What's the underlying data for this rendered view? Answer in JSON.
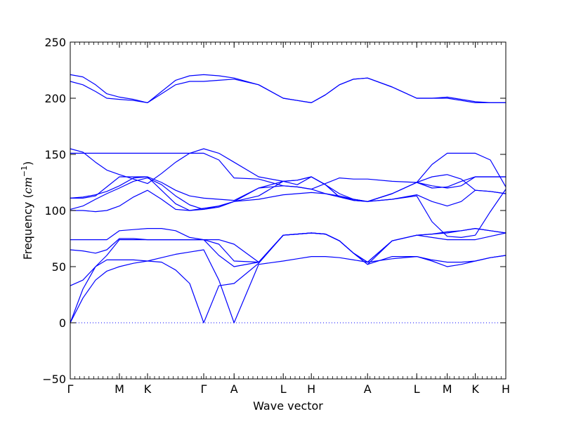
{
  "chart_data": {
    "type": "line",
    "title": "",
    "xlabel": "Wave vector",
    "ylabel": "Frequency (cm⁻¹)",
    "ylabel_prefix": "Frequency (",
    "ylabel_unit": "cm",
    "ylabel_exponent": "−1",
    "ylabel_suffix": ")",
    "ylim": [
      -50,
      250
    ],
    "yticks": [
      -50,
      0,
      50,
      100,
      150,
      200,
      250
    ],
    "ytick_labels": [
      "−50",
      "0",
      "50",
      "100",
      "150",
      "200",
      "250"
    ],
    "xlim": [
      0,
      31
    ],
    "xticks": [
      0,
      3.5,
      5.5,
      9.5,
      11.66,
      15.16,
      17.16,
      21.16,
      24.66,
      26.83,
      28.83,
      31
    ],
    "xtick_labels": [
      "Γ",
      "M",
      "K",
      "Γ",
      "A",
      "L",
      "H",
      "A",
      "L",
      "M",
      "K",
      "H"
    ],
    "grid": false,
    "zero_line": true,
    "line_color": "#0000ff",
    "series": [
      {
        "x": [
          0,
          0.9,
          1.8,
          2.6,
          3.5,
          4.5,
          5.5,
          6.5,
          7.5,
          8.5,
          9.5,
          10.58,
          11.66,
          13.41,
          15.16,
          16.16,
          17.16,
          18.16,
          19.16,
          20.16,
          21.16,
          22.91,
          24.66,
          25.75,
          26.83,
          27.83,
          28.83,
          29.9,
          31
        ],
        "y": [
          0,
          22,
          38,
          46,
          50,
          53,
          55,
          58,
          61,
          63,
          65,
          38,
          0,
          52,
          55,
          57,
          59,
          59,
          58,
          56,
          54,
          57,
          59,
          56,
          54,
          54,
          55,
          58,
          60
        ]
      },
      {
        "x": [
          0,
          0.9,
          1.8,
          2.6,
          3.5,
          4.5,
          5.5,
          6.5,
          7.5,
          8.5,
          9.5,
          10.58,
          11.66,
          13.41,
          15.16,
          16.16,
          17.16,
          18.16,
          19.16,
          20.16,
          21.16,
          22.91,
          24.66,
          25.75,
          26.83,
          27.83,
          28.83,
          29.9,
          31
        ],
        "y": [
          0,
          30,
          50,
          56,
          56,
          56,
          55,
          54,
          47,
          35,
          0,
          33,
          35,
          53,
          78,
          79,
          80,
          79,
          73,
          62,
          52,
          59,
          59,
          55,
          50,
          52,
          55,
          58,
          60
        ]
      },
      {
        "x": [
          0,
          0.9,
          1.8,
          2.6,
          3.5,
          4.5,
          5.5,
          6.5,
          7.5,
          8.5,
          9.5,
          10.58,
          11.66,
          13.41,
          15.16,
          16.16,
          17.16,
          18.16,
          19.16,
          20.16,
          21.16,
          22.91,
          24.66,
          25.75,
          26.83,
          27.83,
          28.83,
          29.9,
          31
        ],
        "y": [
          33,
          38,
          50,
          60,
          74,
          74,
          74,
          74,
          74,
          74,
          74,
          70,
          55,
          54,
          78,
          79,
          80,
          79,
          73,
          62,
          54,
          73,
          78,
          79,
          81,
          82,
          84,
          82,
          80
        ]
      },
      {
        "x": [
          0,
          0.9,
          1.8,
          2.6,
          3.5,
          4.5,
          5.5,
          6.5,
          7.5,
          8.5,
          9.5,
          10.58,
          11.66,
          13.41,
          15.16,
          16.16,
          17.16,
          18.16,
          19.16,
          20.16,
          21.16,
          22.91,
          24.66,
          25.75,
          26.83,
          27.83,
          28.83,
          29.9,
          31
        ],
        "y": [
          65,
          64,
          62,
          65,
          75,
          75,
          74,
          74,
          74,
          74,
          74,
          74,
          70,
          54,
          78,
          79,
          80,
          79,
          73,
          62,
          52,
          73,
          78,
          79,
          80,
          82,
          84,
          82,
          80
        ]
      },
      {
        "x": [
          0,
          0.9,
          1.8,
          2.6,
          3.5,
          4.5,
          5.5,
          6.5,
          7.5,
          8.5,
          9.5,
          10.58,
          11.66,
          13.41,
          15.16,
          16.16,
          17.16,
          18.16,
          19.16,
          20.16,
          21.16,
          22.91,
          24.66,
          25.75,
          26.83,
          27.83,
          28.83,
          29.9,
          31
        ],
        "y": [
          74,
          74,
          74,
          74,
          82,
          83,
          84,
          84,
          82,
          76,
          74,
          60,
          50,
          54,
          78,
          79,
          80,
          79,
          73,
          62,
          54,
          73,
          78,
          76,
          74,
          74,
          74,
          77,
          80
        ]
      },
      {
        "x": [
          0,
          0.9,
          1.8,
          2.6,
          3.5,
          4.5,
          5.5,
          6.5,
          7.5,
          8.5,
          9.5,
          10.58,
          11.66,
          13.41,
          15.16,
          16.16,
          17.16,
          18.16,
          19.16,
          20.16,
          21.16,
          22.91,
          24.66,
          25.75,
          26.83,
          27.83,
          28.83,
          29.9,
          31
        ],
        "y": [
          100,
          100,
          99,
          100,
          104,
          112,
          118,
          110,
          101,
          100,
          101,
          103,
          108,
          110,
          114,
          115,
          116,
          115,
          113,
          110,
          108,
          110,
          114,
          108,
          104,
          108,
          118,
          117,
          115
        ]
      },
      {
        "x": [
          0,
          0.9,
          1.8,
          2.6,
          3.5,
          4.5,
          5.5,
          6.5,
          7.5,
          8.5,
          9.5,
          10.58,
          11.66,
          13.41,
          15.16,
          16.16,
          17.16,
          18.16,
          19.16,
          20.16,
          21.16,
          22.91,
          24.66,
          25.75,
          26.83,
          27.83,
          28.83,
          29.9,
          31
        ],
        "y": [
          101,
          104,
          110,
          115,
          120,
          126,
          129,
          123,
          113,
          105,
          101,
          104,
          108,
          113,
          126,
          123,
          130,
          123,
          115,
          110,
          108,
          115,
          125,
          120,
          121,
          126,
          130,
          130,
          130
        ]
      },
      {
        "x": [
          0,
          0.9,
          1.8,
          2.6,
          3.5,
          4.5,
          5.5,
          6.5,
          7.5,
          8.5,
          9.5,
          10.58,
          11.66,
          13.41,
          15.16,
          16.16,
          17.16,
          18.16,
          19.16,
          20.16,
          21.16,
          22.91,
          24.66,
          25.75,
          26.83,
          27.83,
          28.83,
          29.9,
          31
        ],
        "y": [
          111,
          112,
          114,
          117,
          122,
          129,
          130,
          125,
          118,
          113,
          111,
          110,
          109,
          120,
          122,
          121,
          119,
          124,
          129,
          128,
          128,
          126,
          125,
          130,
          132,
          128,
          118,
          117,
          115
        ]
      },
      {
        "x": [
          0,
          0.9,
          1.8,
          2.6,
          3.5,
          4.5,
          5.5,
          6.5,
          7.5,
          8.5,
          9.5,
          10.58,
          11.66,
          13.41,
          15.16,
          16.16,
          17.16,
          18.16,
          19.16,
          20.16,
          21.16,
          22.91,
          24.66,
          25.75,
          26.83,
          27.83,
          28.83,
          29.9,
          31
        ],
        "y": [
          111,
          111,
          113,
          121,
          130,
          130,
          130,
          118,
          106,
          100,
          102,
          104,
          108,
          120,
          126,
          127,
          130,
          123,
          112,
          109,
          108,
          115,
          125,
          122,
          120,
          122,
          130,
          130,
          130
        ]
      },
      {
        "x": [
          0,
          0.9,
          1.8,
          2.6,
          3.5,
          4.5,
          5.5,
          6.5,
          7.5,
          8.5,
          9.5,
          10.58,
          11.66,
          13.41,
          15.16,
          16.16,
          17.16,
          18.16,
          19.16,
          20.16,
          21.16,
          22.91,
          24.66,
          25.75,
          26.83,
          27.83,
          28.83,
          29.9,
          31
        ],
        "y": [
          151,
          151,
          151,
          151,
          151,
          151,
          151,
          151,
          151,
          151,
          151,
          145,
          129,
          128,
          122,
          121,
          119,
          115,
          112,
          110,
          108,
          110,
          113,
          90,
          77,
          76,
          78,
          99,
          119
        ]
      },
      {
        "x": [
          0,
          0.9,
          1.8,
          2.6,
          3.5,
          4.5,
          5.5,
          6.5,
          7.5,
          8.5,
          9.5,
          10.58,
          11.66,
          13.41,
          15.16,
          16.16,
          17.16,
          18.16,
          19.16,
          20.16,
          21.16,
          22.91,
          24.66,
          25.75,
          26.83,
          27.83,
          28.83,
          29.9,
          31
        ],
        "y": [
          155,
          152,
          143,
          136,
          132,
          128,
          124,
          133,
          143,
          151,
          155,
          151,
          143,
          130,
          126,
          127,
          130,
          123,
          112,
          109,
          108,
          115,
          125,
          141,
          151,
          151,
          151,
          145,
          121
        ]
      },
      {
        "x": [
          0,
          0.9,
          1.8,
          2.6,
          3.5,
          4.5,
          5.5,
          6.5,
          7.5,
          8.5,
          9.5,
          10.58,
          11.66,
          13.41,
          15.16,
          16.16,
          17.16,
          18.16,
          19.16,
          20.16,
          21.16,
          22.91,
          24.66,
          25.75,
          26.83,
          27.83,
          28.83,
          29.9,
          31
        ],
        "y": [
          215,
          212,
          206,
          200,
          199,
          198,
          196,
          204,
          212,
          215,
          215,
          216,
          217,
          212,
          200,
          198,
          196,
          203,
          212,
          217,
          218,
          210,
          200,
          200,
          200,
          198,
          196,
          196,
          196
        ]
      },
      {
        "x": [
          0,
          0.9,
          1.8,
          2.6,
          3.5,
          4.5,
          5.5,
          6.5,
          7.5,
          8.5,
          9.5,
          10.58,
          11.66,
          13.41,
          15.16,
          16.16,
          17.16,
          18.16,
          19.16,
          20.16,
          21.16,
          22.91,
          24.66,
          25.75,
          26.83,
          27.83,
          28.83,
          29.9,
          31
        ],
        "y": [
          221,
          219,
          212,
          204,
          201,
          199,
          196,
          206,
          216,
          220,
          221,
          220,
          218,
          212,
          200,
          198,
          196,
          203,
          212,
          217,
          218,
          210,
          200,
          200,
          201,
          199,
          197,
          196,
          196
        ]
      }
    ]
  }
}
